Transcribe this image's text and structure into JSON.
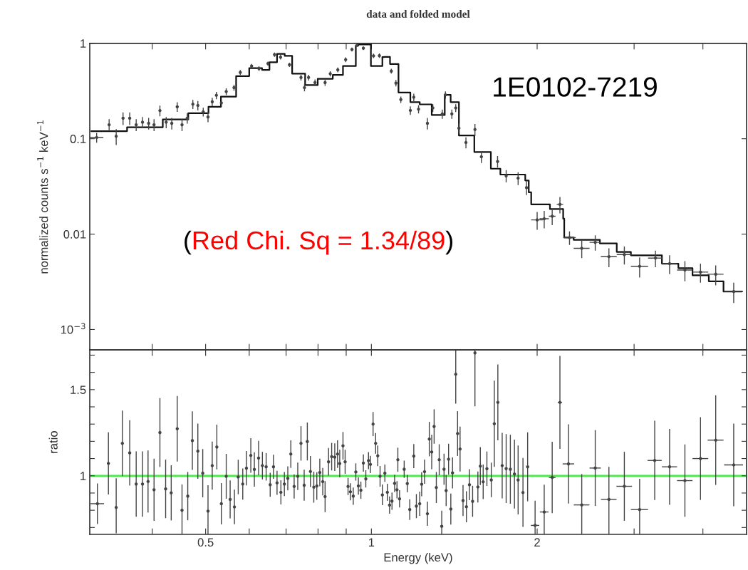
{
  "chart_data": [
    {
      "type": "line",
      "title": "data and folded model",
      "ylabel": "normalized counts s$^{−1}$ keV$^{−1}$",
      "log": "xy",
      "tick_labels": "y",
      "xlim": [
        0.308,
        4.8
      ],
      "ylim": [
        0.00061,
        1
      ],
      "xticks": [
        {
          "value": 0.4,
          "label": null
        },
        0.5,
        {
          "value": 0.6,
          "label": null
        },
        {
          "value": 0.7,
          "label": null
        },
        {
          "value": 0.8,
          "label": null
        },
        {
          "value": 0.9,
          "label": null
        },
        1,
        2,
        {
          "value": 3,
          "label": null
        },
        {
          "value": 4,
          "label": null
        }
      ],
      "yticks": [
        {
          "value": 0.001,
          "label": "10$^{−3}$"
        },
        0.01,
        0.1,
        1
      ],
      "annotations": [
        "1E0102-7219",
        "(Red Chi. Sq = 1.34/89)"
      ],
      "series": [
        {
          "type": "step",
          "color": "#111111",
          "x": [
            0.31,
            0.36,
            0.418,
            0.465,
            0.506,
            0.533,
            0.568,
            0.6,
            0.633,
            0.653,
            0.674,
            0.696,
            0.718,
            0.758,
            0.799,
            0.851,
            0.888,
            0.937,
            0.947,
            0.998,
            1.047,
            1.055,
            1.081,
            1.12,
            1.177,
            1.224,
            1.287,
            1.359,
            1.393,
            1.442,
            1.493,
            1.538,
            1.648,
            1.715,
            1.903,
            1.931,
            1.951,
            2.11,
            2.23,
            2.24,
            2.33,
            2.6,
            2.79,
            2.96,
            3.37,
            3.61,
            3.83,
            4.1,
            4.36,
            4.71
          ],
          "values": [
            0.12,
            0.132,
            0.159,
            0.185,
            0.216,
            0.276,
            0.453,
            0.55,
            0.527,
            0.634,
            0.776,
            0.739,
            0.48,
            0.365,
            0.425,
            0.466,
            0.578,
            0.945,
            0.975,
            0.578,
            0.716,
            0.72,
            0.607,
            0.305,
            0.242,
            0.229,
            0.177,
            0.288,
            0.242,
            0.108,
            0.108,
            0.0726,
            0.0485,
            0.0421,
            0.0365,
            0.0274,
            0.0205,
            0.0183,
            0.0145,
            0.0092,
            0.0087,
            0.008,
            0.0065,
            0.006,
            0.0049,
            0.0044,
            0.0037,
            0.0032,
            0.0025,
            0.0025
          ]
        },
        {
          "type": "scatter",
          "color": "#444444",
          "marker": "circle",
          "x": [
            0.317,
            0.334,
            0.344,
            0.354,
            0.364,
            0.374,
            0.384,
            0.394,
            0.403,
            0.413,
            0.424,
            0.434,
            0.444,
            0.453,
            0.463,
            0.474,
            0.484,
            0.495,
            0.505,
            0.514,
            0.523,
            0.534,
            0.545,
            0.563,
            0.578,
            0.606,
            0.625,
            0.649,
            0.667,
            0.684,
            0.71,
            0.745,
            0.756,
            0.769,
            0.79,
            0.824,
            0.842,
            0.869,
            0.898,
            0.922,
            0.942,
            0.967,
            1.009,
            1.034,
            1.087,
            1.108,
            1.131,
            1.177,
            1.194,
            1.218,
            1.264,
            1.293,
            1.345,
            1.363,
            1.4,
            1.423,
            1.442,
            1.485,
            1.542,
            1.584,
            1.695,
            1.757,
            1.847,
            1.913,
            2.0,
            2.06,
            2.13,
            2.2,
            2.29,
            2.41,
            2.55,
            2.7,
            2.88,
            3.07,
            3.28,
            3.48,
            3.71,
            3.96,
            4.22,
            4.55
          ],
          "values": [
            0.103,
            0.14,
            0.106,
            0.164,
            0.164,
            0.14,
            0.149,
            0.145,
            0.14,
            0.197,
            0.149,
            0.145,
            0.216,
            0.14,
            0.164,
            0.23,
            0.223,
            0.191,
            0.169,
            0.244,
            0.285,
            0.237,
            0.312,
            0.343,
            0.495,
            0.578,
            0.544,
            0.614,
            0.762,
            0.716,
            0.596,
            0.438,
            0.343,
            0.438,
            0.388,
            0.388,
            0.48,
            0.527,
            0.674,
            0.862,
            0.957,
            0.889,
            0.739,
            0.742,
            0.511,
            0.383,
            0.257,
            0.198,
            0.272,
            0.204,
            0.145,
            0.21,
            0.182,
            0.288,
            0.182,
            0.21,
            0.129,
            0.0912,
            0.125,
            0.0647,
            0.0577,
            0.0408,
            0.0386,
            0.0307,
            0.0141,
            0.0145,
            0.0154,
            0.0205,
            0.0092,
            0.0071,
            0.0082,
            0.0058,
            0.0061,
            0.0046,
            0.0056,
            0.0049,
            0.0042,
            0.004,
            0.0038,
            0.0025
          ],
          "errors": [
            0.012,
            0.02,
            0.02,
            0.025,
            0.025,
            0.02,
            0.02,
            0.02,
            0.02,
            0.025,
            0.02,
            0.02,
            0.025,
            0.02,
            0.02,
            0.025,
            0.025,
            0.02,
            0.02,
            0.025,
            0.025,
            0.02,
            0.025,
            0.025,
            0.03,
            0.03,
            0.03,
            0.03,
            0.04,
            0.04,
            0.03,
            0.03,
            0.03,
            0.03,
            0.03,
            0.03,
            0.03,
            0.03,
            0.04,
            0.04,
            0.04,
            0.04,
            0.04,
            0.04,
            0.03,
            0.03,
            0.02,
            0.02,
            0.025,
            0.02,
            0.02,
            0.02,
            0.02,
            0.025,
            0.02,
            0.02,
            0.015,
            0.012,
            0.018,
            0.009,
            0.008,
            0.006,
            0.006,
            0.005,
            0.003,
            0.003,
            0.003,
            0.004,
            0.0015,
            0.0015,
            0.0015,
            0.0013,
            0.0013,
            0.0011,
            0.0011,
            0.0011,
            0.001,
            0.0009,
            0.0009,
            0.0006
          ],
          "xerrors": [
            0.009,
            null,
            null,
            null,
            null,
            null,
            null,
            null,
            null,
            null,
            null,
            null,
            null,
            null,
            null,
            null,
            null,
            null,
            null,
            null,
            null,
            null,
            null,
            null,
            null,
            null,
            null,
            null,
            null,
            null,
            null,
            null,
            null,
            null,
            null,
            null,
            null,
            null,
            null,
            null,
            null,
            null,
            null,
            null,
            null,
            null,
            null,
            null,
            null,
            null,
            null,
            null,
            null,
            null,
            null,
            null,
            null,
            null,
            null,
            null,
            null,
            null,
            null,
            null,
            0.05,
            0.04,
            0.03,
            0.03,
            0.06,
            0.08,
            0.06,
            0.09,
            0.09,
            0.11,
            0.1,
            0.11,
            0.12,
            0.13,
            0.14,
            0.18
          ]
        }
      ]
    },
    {
      "type": "scatter",
      "xlabel": "Energy (keV)",
      "ylabel": "ratio",
      "log": "x",
      "xlim": [
        0.308,
        4.8
      ],
      "ylim": [
        0.66,
        1.73
      ],
      "xticks": [
        {
          "value": 0.4,
          "label": null
        },
        0.5,
        {
          "value": 0.6,
          "label": null
        },
        {
          "value": 0.7,
          "label": null
        },
        {
          "value": 0.8,
          "label": null
        },
        {
          "value": 0.9,
          "label": null
        },
        1,
        2,
        {
          "value": 3,
          "label": null
        },
        {
          "value": 4,
          "label": null
        }
      ],
      "yticks": [
        {
          "value": 0.7,
          "label": null
        },
        {
          "value": 0.8,
          "label": null
        },
        {
          "value": 0.9,
          "label": null
        },
        1,
        {
          "value": 1.1,
          "label": null
        },
        {
          "value": 1.2,
          "label": null
        },
        {
          "value": 1.3,
          "label": null
        },
        {
          "value": 1.4,
          "label": null
        },
        1.5,
        {
          "value": 1.6,
          "label": null
        },
        {
          "value": 1.7,
          "label": null
        }
      ],
      "ref_lines": [
        {
          "axis": "y",
          "value": 1,
          "color": "#44ee44"
        }
      ],
      "series": [
        {
          "color": "#444444",
          "marker": "circle",
          "x": [
            0.318,
            0.333,
            0.344,
            0.353,
            0.364,
            0.374,
            0.384,
            0.393,
            0.403,
            0.413,
            0.423,
            0.433,
            0.444,
            0.453,
            0.464,
            0.473,
            0.484,
            0.494,
            0.505,
            0.514,
            0.524,
            0.534,
            0.545,
            0.554,
            0.564,
            0.573,
            0.584,
            0.593,
            0.604,
            0.613,
            0.624,
            0.634,
            0.644,
            0.655,
            0.664,
            0.674,
            0.685,
            0.695,
            0.705,
            0.714,
            0.724,
            0.735,
            0.745,
            0.755,
            0.765,
            0.775,
            0.786,
            0.796,
            0.806,
            0.816,
            0.824,
            0.836,
            0.847,
            0.858,
            0.868,
            0.876,
            0.888,
            0.896,
            0.907,
            0.916,
            0.927,
            0.937,
            0.947,
            0.957,
            0.967,
            0.977,
            0.988,
            0.996,
            1.007,
            1.018,
            1.027,
            1.037,
            1.047,
            1.058,
            1.069,
            1.079,
            1.09,
            1.102,
            1.113,
            1.117,
            1.125,
            1.147,
            1.162,
            1.174,
            1.194,
            1.207,
            1.224,
            1.234,
            1.249,
            1.264,
            1.274,
            1.287,
            1.3,
            1.312,
            1.328,
            1.342,
            1.355,
            1.367,
            1.381,
            1.394,
            1.404,
            1.423,
            1.434,
            1.449,
            1.467,
            1.488,
            1.507,
            1.527,
            1.542,
            1.561,
            1.577,
            1.596,
            1.621,
            1.651,
            1.672,
            1.697,
            1.728,
            1.757,
            1.788,
            1.819,
            1.847,
            1.885,
            1.922,
            1.983,
            2.06,
            2.13,
            2.2,
            2.28,
            2.41,
            2.55,
            2.7,
            2.88,
            3.07,
            3.27,
            3.48,
            3.71,
            3.96,
            4.22,
            4.55
          ],
          "values": [
            0.838,
            1.072,
            0.816,
            1.188,
            1.133,
            0.952,
            0.952,
            0.967,
            0.919,
            1.251,
            0.924,
            0.901,
            1.273,
            0.8,
            0.882,
            1.204,
            1.143,
            1.015,
            0.795,
            1.059,
            1.167,
            0.838,
            0.997,
            0.863,
            0.819,
            0.993,
            0.952,
            1.044,
            1.118,
            1.037,
            1.103,
            1.059,
            1.052,
            0.948,
            1.052,
            0.959,
            0.904,
            0.952,
            0.985,
            1.126,
            0.938,
            0.997,
            1.188,
            0.945,
            1.199,
            1.025,
            0.934,
            0.941,
            1.019,
            0.966,
            0.879,
            1.081,
            1.111,
            1.108,
            1.126,
            1.071,
            1.174,
            1.081,
            0.938,
            0.907,
            0.882,
            1.022,
            0.941,
            0.916,
            1.074,
            0.982,
            1.088,
            1.066,
            1.3,
            1.188,
            1.116,
            0.997,
            0.889,
            1.015,
            0.904,
            0.83,
            0.853,
            0.956,
            0.919,
            1.093,
            0.866,
            1.038,
            0.955,
            0.804,
            1.114,
            0.824,
            0.838,
            0.951,
            1.024,
            0.78,
            1.213,
            1.138,
            1.286,
            0.932,
            1.093,
            0.707,
            1.038,
            0.914,
            1.096,
            0.807,
            1.017,
            1.589,
            1.245,
            1.155,
            0.856,
            0.82,
            0.948,
            0.852,
            1.713,
            0.935,
            1.056,
            0.965,
            1.041,
            0.976,
            1.302,
            1.426,
            1.059,
            1.042,
            1.038,
            1.01,
            0.976,
            0.903,
            1.052,
            0.712,
            0.79,
            0.99,
            1.426,
            1.069,
            0.831,
            1.045,
            0.863,
            0.939,
            0.804,
            1.089,
            1.052,
            0.972,
            1.1,
            1.207,
            1.063
          ],
          "errors": [
            0.118,
            0.18,
            [
              0.666,
              0.986
            ],
            0.19,
            0.19,
            0.19,
            0.19,
            0.18,
            0.18,
            0.2,
            0.17,
            0.16,
            0.19,
            [
              0.66,
              0.95
            ],
            0.14,
            0.17,
            0.16,
            0.14,
            [
              0.66,
              0.945
            ],
            0.14,
            0.13,
            0.12,
            0.13,
            0.11,
            0.1,
            0.1,
            0.09,
            0.1,
            0.1,
            0.1,
            0.1,
            0.08,
            0.08,
            0.07,
            0.07,
            0.07,
            0.07,
            0.07,
            0.07,
            0.08,
            0.07,
            0.08,
            0.1,
            0.09,
            0.11,
            0.09,
            0.09,
            0.08,
            0.08,
            0.08,
            0.09,
            0.08,
            0.08,
            0.08,
            0.08,
            0.08,
            0.08,
            0.07,
            0.05,
            0.05,
            0.05,
            0.05,
            0.05,
            0.05,
            0.05,
            0.05,
            0.05,
            0.05,
            0.07,
            0.06,
            0.06,
            0.06,
            0.06,
            0.05,
            0.05,
            0.05,
            0.05,
            0.05,
            0.05,
            0.07,
            0.05,
            0.05,
            0.05,
            0.06,
            0.07,
            0.07,
            0.07,
            0.07,
            0.07,
            0.07,
            0.1,
            0.1,
            0.1,
            0.09,
            0.09,
            [
              0.66,
              0.797
            ],
            0.09,
            0.09,
            0.09,
            0.09,
            0.09,
            [
              1.419,
              1.729
            ],
            0.13,
            0.13,
            0.09,
            0.09,
            0.09,
            0.09,
            [
              1.403,
              1.73
            ],
            0.09,
            0.11,
            0.1,
            0.1,
            0.1,
            0.25,
            0.22,
            0.19,
            0.2,
            0.2,
            0.2,
            0.2,
            0.2,
            0.2,
            [
              0.66,
              0.855
            ],
            [
              0.66,
              0.948
            ],
            0.207,
            0.27,
            0.23,
            [
              0.66,
              1.01
            ],
            0.22,
            [
              0.66,
              1.052
            ],
            0.2,
            [
              0.66,
              0.983
            ],
            0.23,
            0.22,
            0.21,
            0.24,
            0.26,
            0.24
          ],
          "xerrors": [
            0.009,
            null,
            null,
            null,
            null,
            null,
            null,
            null,
            null,
            null,
            null,
            null,
            null,
            null,
            null,
            null,
            null,
            null,
            null,
            null,
            null,
            null,
            null,
            null,
            null,
            null,
            null,
            null,
            null,
            null,
            null,
            null,
            null,
            null,
            null,
            null,
            null,
            null,
            null,
            null,
            null,
            null,
            null,
            null,
            null,
            null,
            null,
            null,
            null,
            null,
            null,
            null,
            null,
            null,
            null,
            null,
            null,
            null,
            null,
            null,
            null,
            null,
            null,
            null,
            null,
            null,
            null,
            null,
            null,
            null,
            null,
            null,
            null,
            null,
            null,
            null,
            null,
            null,
            null,
            null,
            null,
            null,
            null,
            null,
            null,
            null,
            null,
            null,
            null,
            null,
            null,
            null,
            null,
            null,
            null,
            null,
            null,
            null,
            null,
            null,
            null,
            null,
            null,
            null,
            null,
            null,
            null,
            null,
            null,
            null,
            null,
            null,
            null,
            null,
            null,
            null,
            null,
            null,
            null,
            null,
            null,
            null,
            null,
            0.035,
            0.037,
            0.03,
            0.02,
            0.055,
            0.079,
            0.06,
            0.088,
            0.094,
            0.11,
            0.097,
            0.11,
            0.12,
            0.13,
            0.14,
            0.18
          ]
        }
      ]
    }
  ]
}
